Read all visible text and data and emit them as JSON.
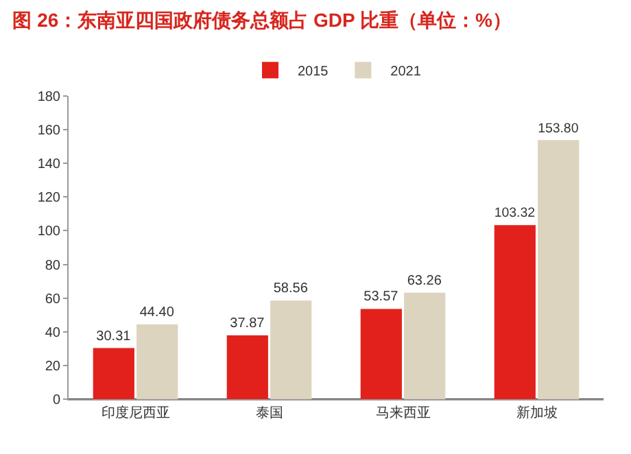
{
  "chart_data": {
    "type": "bar",
    "title": "图 26：东南亚四国政府债务总额占 GDP 比重（单位：%）",
    "categories": [
      "印度尼西亚",
      "泰国",
      "马来西亚",
      "新加坡"
    ],
    "series": [
      {
        "name": "2015",
        "color": "#e3211c",
        "values": [
          30.31,
          37.87,
          53.57,
          103.32
        ]
      },
      {
        "name": "2021",
        "color": "#ddd4bf",
        "values": [
          44.4,
          58.56,
          63.26,
          153.8
        ]
      }
    ],
    "value_labels": [
      [
        "30.31",
        "37.87",
        "53.57",
        "103.32"
      ],
      [
        "44.40",
        "58.56",
        "63.26",
        "153.80"
      ]
    ],
    "ylim": [
      0,
      180
    ],
    "yticks": [
      0,
      20,
      40,
      60,
      80,
      100,
      120,
      140,
      160,
      180
    ],
    "grid": false,
    "legend": "top"
  }
}
